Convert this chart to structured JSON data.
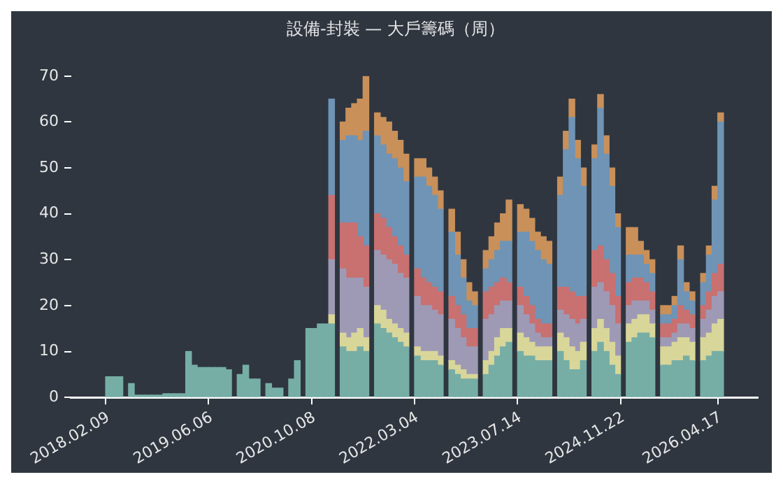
{
  "chart_data": {
    "type": "bar",
    "stacked": true,
    "title": "設備-封裝 — 大戶籌碼（周）",
    "categories": [
      null,
      null,
      null,
      null,
      null,
      null,
      "2018.02.09",
      null,
      null,
      null,
      null,
      null,
      null,
      null,
      null,
      null,
      null,
      null,
      null,
      null,
      null,
      null,
      null,
      null,
      "2019.06.06",
      null,
      null,
      null,
      null,
      null,
      null,
      null,
      null,
      null,
      null,
      null,
      null,
      null,
      null,
      null,
      null,
      null,
      "2020.10.08",
      null,
      null,
      null,
      null,
      null,
      null,
      null,
      null,
      null,
      null,
      null,
      null,
      null,
      null,
      null,
      null,
      null,
      "2022.03.04",
      null,
      null,
      null,
      null,
      null,
      null,
      null,
      null,
      null,
      null,
      null,
      null,
      null,
      null,
      null,
      null,
      null,
      "2023.07.14",
      null,
      null,
      null,
      null,
      null,
      null,
      null,
      null,
      null,
      null,
      null,
      null,
      null,
      null,
      null,
      null,
      null,
      "2024.11.22",
      null,
      null,
      null,
      null,
      null,
      null,
      null,
      null,
      null,
      null,
      null,
      null,
      null,
      null,
      null,
      null,
      "2026.04.17",
      null,
      null,
      null,
      null,
      null,
      null
    ],
    "ylim": [
      0,
      70
    ],
    "yticks": [
      0,
      10,
      20,
      30,
      40,
      50,
      60,
      70
    ],
    "series": [
      {
        "color": "#76aea5",
        "values": [
          null,
          null,
          null,
          null,
          null,
          null,
          4.5,
          4.5,
          4.5,
          null,
          3,
          0.5,
          0.5,
          0.5,
          0.5,
          0.5,
          0.8,
          0.8,
          0.8,
          0.8,
          10,
          7,
          6.5,
          6.5,
          6.5,
          6.5,
          6.5,
          6,
          null,
          5,
          7,
          4,
          4,
          null,
          3,
          2,
          2,
          null,
          4,
          8,
          null,
          15,
          15,
          16,
          16,
          16,
          null,
          11,
          10,
          10,
          11,
          10,
          null,
          16,
          15,
          14,
          13,
          12,
          11,
          null,
          9,
          8,
          8,
          8,
          7,
          null,
          6,
          5,
          4,
          4,
          4,
          null,
          5,
          7,
          9,
          11,
          12,
          null,
          10,
          9,
          9,
          8,
          8,
          8,
          null,
          10,
          8,
          6,
          6,
          8,
          null,
          10,
          12,
          10,
          7,
          5,
          null,
          12,
          13,
          14,
          14,
          13,
          null,
          7,
          7,
          8,
          8,
          9,
          8,
          null,
          8,
          9,
          10,
          10,
          null,
          null,
          null,
          null,
          null,
          null
        ]
      },
      {
        "color": "#d9d69a",
        "values": [
          null,
          null,
          null,
          null,
          null,
          null,
          null,
          null,
          null,
          null,
          null,
          null,
          null,
          null,
          null,
          null,
          null,
          null,
          null,
          null,
          null,
          null,
          null,
          null,
          null,
          null,
          null,
          null,
          null,
          null,
          null,
          null,
          null,
          null,
          null,
          null,
          null,
          null,
          null,
          null,
          null,
          null,
          null,
          null,
          null,
          2,
          null,
          3,
          3,
          4,
          4,
          3,
          null,
          4,
          4,
          3,
          3,
          3,
          3,
          null,
          2,
          2,
          2,
          2,
          2,
          null,
          2,
          2,
          2,
          1,
          1,
          null,
          3,
          3,
          4,
          4,
          3,
          null,
          4,
          4,
          3,
          3,
          3,
          3,
          null,
          4,
          5,
          5,
          4,
          4,
          null,
          5,
          5,
          5,
          5,
          4,
          null,
          4,
          4,
          4,
          4,
          3,
          null,
          4,
          4,
          4,
          5,
          4,
          4,
          null,
          5,
          5,
          6,
          7,
          null,
          null,
          null,
          null,
          null,
          null
        ]
      },
      {
        "color": "#9e9ab5",
        "values": [
          null,
          null,
          null,
          null,
          null,
          null,
          null,
          null,
          null,
          null,
          null,
          null,
          null,
          null,
          null,
          null,
          null,
          null,
          null,
          null,
          null,
          null,
          null,
          null,
          null,
          null,
          null,
          null,
          null,
          null,
          null,
          null,
          null,
          null,
          null,
          null,
          null,
          null,
          null,
          null,
          null,
          null,
          null,
          null,
          null,
          12,
          null,
          14,
          13,
          12,
          11,
          11,
          null,
          12,
          12,
          13,
          13,
          12,
          12,
          null,
          11,
          10,
          10,
          9,
          9,
          null,
          9,
          8,
          7,
          6,
          6,
          null,
          9,
          8,
          7,
          6,
          6,
          null,
          6,
          5,
          4,
          3,
          2,
          2,
          null,
          5,
          5,
          6,
          6,
          5,
          null,
          9,
          8,
          8,
          8,
          7,
          null,
          4,
          4,
          3,
          3,
          3,
          null,
          2,
          2,
          2,
          3,
          3,
          3,
          null,
          4,
          5,
          6,
          6,
          null,
          null,
          null,
          null,
          null,
          null
        ]
      },
      {
        "color": "#c97070",
        "values": [
          null,
          null,
          null,
          null,
          null,
          null,
          null,
          null,
          null,
          null,
          null,
          null,
          null,
          null,
          null,
          null,
          null,
          null,
          null,
          null,
          null,
          null,
          null,
          null,
          null,
          null,
          null,
          null,
          null,
          null,
          null,
          null,
          null,
          null,
          null,
          null,
          null,
          null,
          null,
          null,
          null,
          null,
          null,
          null,
          null,
          14,
          null,
          10,
          12,
          12,
          9,
          9,
          null,
          8,
          8,
          7,
          6,
          6,
          5,
          null,
          6,
          6,
          5,
          5,
          5,
          null,
          5,
          5,
          5,
          4,
          4,
          null,
          6,
          6,
          5,
          5,
          4,
          null,
          4,
          4,
          4,
          3,
          3,
          3,
          null,
          5,
          6,
          6,
          6,
          5,
          null,
          8,
          8,
          7,
          7,
          6,
          null,
          5,
          5,
          5,
          4,
          4,
          null,
          3,
          3,
          3,
          4,
          3,
          3,
          null,
          3,
          4,
          5,
          6,
          null,
          null,
          null,
          null,
          null,
          null
        ]
      },
      {
        "color": "#6f94b5",
        "values": [
          null,
          null,
          null,
          null,
          null,
          null,
          null,
          null,
          null,
          null,
          null,
          null,
          null,
          null,
          null,
          null,
          null,
          null,
          null,
          null,
          null,
          null,
          null,
          null,
          null,
          null,
          null,
          null,
          null,
          null,
          null,
          null,
          null,
          null,
          null,
          null,
          null,
          null,
          null,
          null,
          null,
          null,
          null,
          null,
          null,
          21,
          null,
          18,
          19,
          19,
          21,
          25,
          null,
          17,
          16,
          16,
          17,
          17,
          16,
          null,
          20,
          22,
          21,
          20,
          18,
          null,
          14,
          11,
          8,
          6,
          5,
          null,
          5,
          6,
          7,
          8,
          9,
          null,
          12,
          14,
          14,
          15,
          14,
          13,
          null,
          20,
          30,
          38,
          30,
          24,
          null,
          20,
          30,
          23,
          19,
          15,
          null,
          6,
          5,
          5,
          4,
          4,
          null,
          2,
          2,
          3,
          10,
          4,
          3,
          null,
          5,
          8,
          16,
          31,
          null,
          null,
          null,
          null,
          null,
          null
        ]
      },
      {
        "color": "#c9905a",
        "values": [
          null,
          null,
          null,
          null,
          null,
          null,
          null,
          null,
          null,
          null,
          null,
          null,
          null,
          null,
          null,
          null,
          null,
          null,
          null,
          null,
          null,
          null,
          null,
          null,
          null,
          null,
          null,
          null,
          null,
          null,
          null,
          null,
          null,
          null,
          null,
          null,
          null,
          null,
          null,
          null,
          null,
          null,
          null,
          null,
          null,
          null,
          null,
          4,
          6,
          7,
          9,
          12,
          null,
          5,
          6,
          7,
          6,
          6,
          6,
          null,
          4,
          4,
          4,
          4,
          4,
          null,
          5,
          5,
          4,
          4,
          3,
          null,
          4,
          5,
          6,
          6,
          9,
          null,
          6,
          5,
          5,
          4,
          5,
          5,
          null,
          4,
          4,
          4,
          4,
          4,
          null,
          3,
          3,
          4,
          4,
          3,
          null,
          6,
          6,
          3,
          3,
          3,
          null,
          2,
          2,
          2,
          3,
          2,
          2,
          null,
          2,
          2,
          3,
          2,
          null,
          null,
          null,
          null,
          null,
          null
        ]
      }
    ]
  }
}
